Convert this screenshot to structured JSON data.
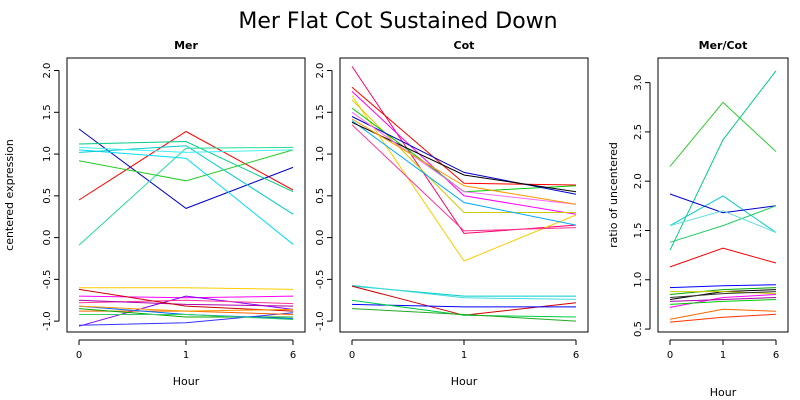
{
  "title": "Mer Flat Cot Sustained Down",
  "chart_data": [
    {
      "type": "line",
      "title": "Mer",
      "xlabel": "Hour",
      "ylabel": "centered expression",
      "categories": [
        "0",
        "1",
        "6"
      ],
      "ylim": [
        -1.13,
        2.15
      ],
      "yticks": [
        "-1.0",
        "-0.5",
        "0.0",
        "0.5",
        "1.0",
        "1.5",
        "2.0"
      ],
      "ytick_values": [
        -1.0,
        -0.5,
        0.0,
        0.5,
        1.0,
        1.5,
        2.0
      ],
      "grid": false,
      "series": [
        {
          "color": "#ff0000",
          "values": [
            0.45,
            1.27,
            0.57
          ]
        },
        {
          "color": "#0000cc",
          "values": [
            1.3,
            0.35,
            0.84
          ]
        },
        {
          "color": "#22cc22",
          "values": [
            0.92,
            0.68,
            1.05
          ]
        },
        {
          "color": "#00cc88",
          "values": [
            1.12,
            1.15,
            0.55
          ]
        },
        {
          "color": "#00ddff",
          "values": [
            1.05,
            0.95,
            -0.08
          ]
        },
        {
          "color": "#00cccc",
          "values": [
            1.02,
            1.1,
            0.28
          ]
        },
        {
          "color": "#22dd99",
          "values": [
            -0.09,
            1.07,
            1.08
          ]
        },
        {
          "color": "#44eeee",
          "values": [
            1.08,
            1.02,
            1.05
          ]
        },
        {
          "color": "#ffcc00",
          "values": [
            -0.6,
            -0.6,
            -0.62
          ]
        },
        {
          "color": "#ff00ff",
          "values": [
            -0.7,
            -0.72,
            -0.7
          ]
        },
        {
          "color": "#8800ff",
          "values": [
            -1.06,
            -0.7,
            -0.86
          ]
        },
        {
          "color": "#3333ff",
          "values": [
            -1.05,
            -1.02,
            -0.9
          ]
        },
        {
          "color": "#ff6600",
          "values": [
            -0.88,
            -0.88,
            -0.92
          ]
        },
        {
          "color": "#ff3399",
          "values": [
            -0.78,
            -0.75,
            -0.79
          ]
        },
        {
          "color": "#00aa00",
          "values": [
            -0.85,
            -0.95,
            -0.95
          ]
        },
        {
          "color": "#aa00aa",
          "values": [
            -0.75,
            -0.8,
            -0.82
          ]
        },
        {
          "color": "#cc0000",
          "values": [
            -0.62,
            -0.82,
            -0.88
          ]
        },
        {
          "color": "#0066ff",
          "values": [
            -0.82,
            -0.92,
            -0.97
          ]
        },
        {
          "color": "#ff9900",
          "values": [
            -0.82,
            -0.88,
            -0.86
          ]
        },
        {
          "color": "#33cc66",
          "values": [
            -0.92,
            -0.92,
            -0.98
          ]
        }
      ]
    },
    {
      "type": "line",
      "title": "Cot",
      "xlabel": "Hour",
      "ylabel": "",
      "categories": [
        "0",
        "1",
        "6"
      ],
      "ylim": [
        -1.13,
        2.15
      ],
      "yticks": [
        "-1.0",
        "-0.5",
        "0.0",
        "0.5",
        "1.0",
        "1.5",
        "2.0"
      ],
      "ytick_values": [
        -1.0,
        -0.5,
        0.0,
        0.5,
        1.0,
        1.5,
        2.0
      ],
      "grid": false,
      "series": [
        {
          "color": "#ff0066",
          "values": [
            2.05,
            0.05,
            0.15
          ]
        },
        {
          "color": "#ff0000",
          "values": [
            1.8,
            0.65,
            0.63
          ]
        },
        {
          "color": "#ff00ff",
          "values": [
            1.75,
            0.5,
            0.28
          ]
        },
        {
          "color": "#ffcc00",
          "values": [
            1.7,
            -0.28,
            0.27
          ]
        },
        {
          "color": "#cccc00",
          "values": [
            1.65,
            0.3,
            0.3
          ]
        },
        {
          "color": "#00cc00",
          "values": [
            1.55,
            0.55,
            0.62
          ]
        },
        {
          "color": "#0000cc",
          "values": [
            1.45,
            0.78,
            0.52
          ]
        },
        {
          "color": "#00aaff",
          "values": [
            1.4,
            0.42,
            0.15
          ]
        },
        {
          "color": "#000000",
          "values": [
            1.38,
            0.75,
            0.55
          ]
        },
        {
          "color": "#ff66ff",
          "values": [
            1.5,
            0.55,
            0.4
          ]
        },
        {
          "color": "#ff3399",
          "values": [
            1.35,
            0.08,
            0.12
          ]
        },
        {
          "color": "#ff9900",
          "values": [
            1.42,
            0.62,
            0.4
          ]
        },
        {
          "color": "#00cccc",
          "values": [
            -0.58,
            -0.7,
            -0.7
          ]
        },
        {
          "color": "#44dddd",
          "values": [
            -0.57,
            -0.72,
            -0.74
          ]
        },
        {
          "color": "#cc0000",
          "values": [
            -0.58,
            -0.93,
            -0.78
          ]
        },
        {
          "color": "#0000ff",
          "values": [
            -0.8,
            -0.83,
            -0.83
          ]
        },
        {
          "color": "#00cc44",
          "values": [
            -0.75,
            -0.93,
            -0.95
          ]
        },
        {
          "color": "#22aa22",
          "values": [
            -0.85,
            -0.92,
            -1.0
          ]
        }
      ]
    },
    {
      "type": "line",
      "title": "Mer/Cot",
      "xlabel": "Hour",
      "ylabel": "ratio of uncentered",
      "categories": [
        "0",
        "1",
        "6"
      ],
      "ylim": [
        0.47,
        3.25
      ],
      "yticks": [
        "0.5",
        "1.0",
        "1.5",
        "2.0",
        "2.5",
        "3.0"
      ],
      "ytick_values": [
        0.5,
        1.0,
        1.5,
        2.0,
        2.5,
        3.0
      ],
      "grid": false,
      "series": [
        {
          "color": "#00cc88",
          "values": [
            1.3,
            2.42,
            3.12
          ]
        },
        {
          "color": "#33cc33",
          "values": [
            2.15,
            2.8,
            2.3
          ]
        },
        {
          "color": "#00cccc",
          "values": [
            1.55,
            1.85,
            1.48
          ]
        },
        {
          "color": "#0000cc",
          "values": [
            1.87,
            1.68,
            1.75
          ]
        },
        {
          "color": "#22cc66",
          "values": [
            1.38,
            1.55,
            1.75
          ]
        },
        {
          "color": "#66dddd",
          "values": [
            1.55,
            1.7,
            1.48
          ]
        },
        {
          "color": "#ff0000",
          "values": [
            1.13,
            1.32,
            1.17
          ]
        },
        {
          "color": "#000000",
          "values": [
            0.8,
            0.88,
            0.9
          ]
        },
        {
          "color": "#0000ff",
          "values": [
            0.92,
            0.94,
            0.95
          ]
        },
        {
          "color": "#00aa00",
          "values": [
            0.85,
            0.9,
            0.92
          ]
        },
        {
          "color": "#ff00ff",
          "values": [
            0.72,
            0.82,
            0.85
          ]
        },
        {
          "color": "#aa00aa",
          "values": [
            0.78,
            0.8,
            0.82
          ]
        },
        {
          "color": "#cccc00",
          "values": [
            0.88,
            0.88,
            0.86
          ]
        },
        {
          "color": "#ff6600",
          "values": [
            0.6,
            0.7,
            0.68
          ]
        },
        {
          "color": "#ff3300",
          "values": [
            0.57,
            0.62,
            0.65
          ]
        },
        {
          "color": "#00cc00",
          "values": [
            0.75,
            0.78,
            0.8
          ]
        },
        {
          "color": "#333333",
          "values": [
            0.82,
            0.86,
            0.88
          ]
        }
      ]
    }
  ]
}
